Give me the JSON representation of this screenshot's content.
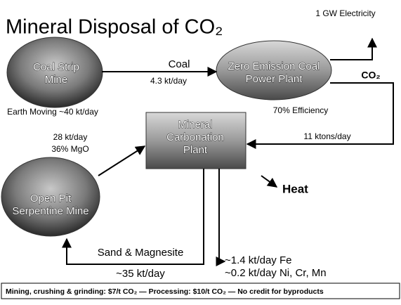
{
  "header": {
    "title": "Mineral Disposal of CO₂"
  },
  "nodes": [
    {
      "label": "Coal Strip Mine",
      "note": "Earth Moving ~40 kt/day"
    },
    {
      "label": "Zero Emission Coal Power Plant",
      "note": "70% Efficiency"
    },
    {
      "label": "Mineral Carbonation Plant"
    },
    {
      "label": "Open Pit Serpentine Mine"
    }
  ],
  "flows": [
    {
      "label": "Coal",
      "amount": "4.3 kt/day"
    },
    {
      "label": "1 GW Electricity"
    },
    {
      "label": "CO₂",
      "amount": "11 ktons/day"
    },
    {
      "label": "28 kt/day",
      "amount": "36% MgO"
    },
    {
      "label": "Heat"
    },
    {
      "label": "~1.4 kt/day Fe",
      "amount": "~0.2 kt/day Ni, Cr, Mn"
    },
    {
      "label": "Sand & Magnesite",
      "amount": "~35 kt/day"
    }
  ],
  "footer": {
    "text": "Mining, crushing & grinding: $7/t CO₂ — Processing: $10/t CO₂ — No credit for byproducts"
  }
}
